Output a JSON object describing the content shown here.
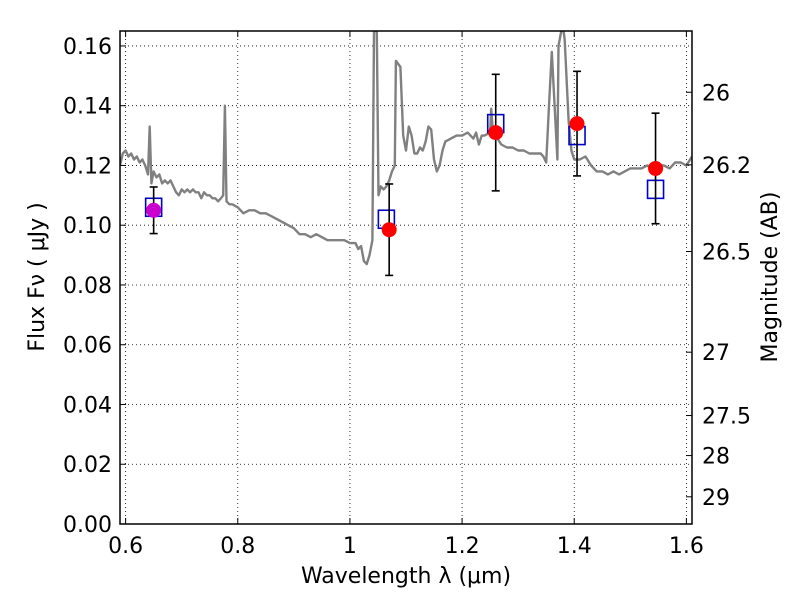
{
  "chart_data": {
    "type": "scatter",
    "xlabel": "Wavelength  λ (μm)",
    "ylabel": "Flux  Fν  ( μJy )",
    "ylabel_right": "Magnitude (AB)",
    "xlim": [
      0.59,
      1.61
    ],
    "ylim": [
      0.0,
      0.165
    ],
    "grid": true,
    "x_ticks": [
      0.6,
      0.8,
      1.0,
      1.2,
      1.4,
      1.6
    ],
    "x_tick_labels": [
      "0.6",
      "0.8",
      "1",
      "1.2",
      "1.4",
      "1.6"
    ],
    "y_ticks": [
      0.0,
      0.02,
      0.04,
      0.06,
      0.08,
      0.1,
      0.12,
      0.14,
      0.16
    ],
    "y_tick_labels": [
      "0.00",
      "0.02",
      "0.04",
      "0.06",
      "0.08",
      "0.10",
      "0.12",
      "0.14",
      "0.16"
    ],
    "right_ticks": [
      {
        "label": "26",
        "flux": 0.1445
      },
      {
        "label": "26.2",
        "flux": 0.1202
      },
      {
        "label": "26.5",
        "flux": 0.0912
      },
      {
        "label": "27",
        "flux": 0.0575
      },
      {
        "label": "27.5",
        "flux": 0.0363
      },
      {
        "label": "28",
        "flux": 0.0229
      },
      {
        "label": "29",
        "flux": 0.0091
      }
    ],
    "series": [
      {
        "kind": "model",
        "color": "#808080",
        "points": [
          [
            0.59,
            0.12
          ],
          [
            0.595,
            0.124
          ],
          [
            0.6,
            0.125
          ],
          [
            0.605,
            0.123
          ],
          [
            0.61,
            0.124
          ],
          [
            0.615,
            0.122
          ],
          [
            0.62,
            0.123
          ],
          [
            0.625,
            0.121
          ],
          [
            0.63,
            0.122
          ],
          [
            0.635,
            0.12
          ],
          [
            0.64,
            0.117
          ],
          [
            0.643,
            0.133
          ],
          [
            0.646,
            0.114
          ],
          [
            0.65,
            0.118
          ],
          [
            0.655,
            0.116
          ],
          [
            0.66,
            0.117
          ],
          [
            0.665,
            0.114
          ],
          [
            0.67,
            0.115
          ],
          [
            0.675,
            0.114
          ],
          [
            0.68,
            0.115
          ],
          [
            0.685,
            0.113
          ],
          [
            0.69,
            0.111
          ],
          [
            0.695,
            0.11
          ],
          [
            0.7,
            0.112
          ],
          [
            0.705,
            0.111
          ],
          [
            0.71,
            0.112
          ],
          [
            0.715,
            0.111
          ],
          [
            0.72,
            0.112
          ],
          [
            0.725,
            0.111
          ],
          [
            0.73,
            0.111
          ],
          [
            0.735,
            0.109
          ],
          [
            0.74,
            0.111
          ],
          [
            0.745,
            0.11
          ],
          [
            0.75,
            0.11
          ],
          [
            0.755,
            0.109
          ],
          [
            0.76,
            0.109
          ],
          [
            0.765,
            0.108
          ],
          [
            0.77,
            0.109
          ],
          [
            0.774,
            0.11
          ],
          [
            0.777,
            0.14
          ],
          [
            0.78,
            0.108
          ],
          [
            0.785,
            0.107
          ],
          [
            0.79,
            0.107
          ],
          [
            0.8,
            0.106
          ],
          [
            0.81,
            0.104
          ],
          [
            0.82,
            0.105
          ],
          [
            0.83,
            0.105
          ],
          [
            0.84,
            0.104
          ],
          [
            0.85,
            0.104
          ],
          [
            0.86,
            0.103
          ],
          [
            0.87,
            0.102
          ],
          [
            0.88,
            0.101
          ],
          [
            0.89,
            0.1
          ],
          [
            0.9,
            0.099
          ],
          [
            0.91,
            0.097
          ],
          [
            0.92,
            0.097
          ],
          [
            0.93,
            0.096
          ],
          [
            0.94,
            0.097
          ],
          [
            0.95,
            0.096
          ],
          [
            0.96,
            0.095
          ],
          [
            0.97,
            0.095
          ],
          [
            0.98,
            0.095
          ],
          [
            0.99,
            0.095
          ],
          [
            1.0,
            0.094
          ],
          [
            1.01,
            0.094
          ],
          [
            1.015,
            0.092
          ],
          [
            1.02,
            0.093
          ],
          [
            1.025,
            0.088
          ],
          [
            1.03,
            0.087
          ],
          [
            1.035,
            0.09
          ],
          [
            1.04,
            0.095
          ],
          [
            1.043,
            0.165
          ],
          [
            1.048,
            0.165
          ],
          [
            1.051,
            0.11
          ],
          [
            1.055,
            0.113
          ],
          [
            1.06,
            0.112
          ],
          [
            1.065,
            0.113
          ],
          [
            1.07,
            0.115
          ],
          [
            1.075,
            0.118
          ],
          [
            1.08,
            0.12
          ],
          [
            1.082,
            0.155
          ],
          [
            1.09,
            0.153
          ],
          [
            1.095,
            0.13
          ],
          [
            1.1,
            0.125
          ],
          [
            1.105,
            0.133
          ],
          [
            1.11,
            0.13
          ],
          [
            1.115,
            0.124
          ],
          [
            1.12,
            0.124
          ],
          [
            1.125,
            0.126
          ],
          [
            1.13,
            0.125
          ],
          [
            1.135,
            0.128
          ],
          [
            1.14,
            0.133
          ],
          [
            1.145,
            0.132
          ],
          [
            1.15,
            0.122
          ],
          [
            1.155,
            0.118
          ],
          [
            1.16,
            0.12
          ],
          [
            1.165,
            0.125
          ],
          [
            1.17,
            0.128
          ],
          [
            1.18,
            0.129
          ],
          [
            1.19,
            0.13
          ],
          [
            1.2,
            0.13
          ],
          [
            1.21,
            0.131
          ],
          [
            1.22,
            0.129
          ],
          [
            1.225,
            0.131
          ],
          [
            1.23,
            0.127
          ],
          [
            1.235,
            0.13
          ],
          [
            1.24,
            0.13
          ],
          [
            1.25,
            0.131
          ],
          [
            1.252,
            0.139
          ],
          [
            1.255,
            0.131
          ],
          [
            1.26,
            0.13
          ],
          [
            1.27,
            0.127
          ],
          [
            1.28,
            0.126
          ],
          [
            1.29,
            0.126
          ],
          [
            1.3,
            0.125
          ],
          [
            1.31,
            0.125
          ],
          [
            1.32,
            0.124
          ],
          [
            1.33,
            0.124
          ],
          [
            1.34,
            0.124
          ],
          [
            1.345,
            0.123
          ],
          [
            1.35,
            0.121
          ],
          [
            1.355,
            0.14
          ],
          [
            1.36,
            0.158
          ],
          [
            1.365,
            0.14
          ],
          [
            1.37,
            0.122
          ],
          [
            1.372,
            0.16
          ],
          [
            1.377,
            0.165
          ],
          [
            1.381,
            0.165
          ],
          [
            1.383,
            0.162
          ],
          [
            1.39,
            0.135
          ],
          [
            1.395,
            0.125
          ],
          [
            1.4,
            0.122
          ],
          [
            1.41,
            0.122
          ],
          [
            1.42,
            0.123
          ],
          [
            1.43,
            0.12
          ],
          [
            1.44,
            0.118
          ],
          [
            1.45,
            0.118
          ],
          [
            1.46,
            0.117
          ],
          [
            1.47,
            0.118
          ],
          [
            1.48,
            0.117
          ],
          [
            1.49,
            0.118
          ],
          [
            1.5,
            0.119
          ],
          [
            1.51,
            0.119
          ],
          [
            1.52,
            0.119
          ],
          [
            1.53,
            0.12
          ],
          [
            1.54,
            0.119
          ],
          [
            1.55,
            0.12
          ],
          [
            1.56,
            0.12
          ],
          [
            1.57,
            0.119
          ],
          [
            1.58,
            0.121
          ],
          [
            1.59,
            0.121
          ],
          [
            1.6,
            0.12
          ],
          [
            1.61,
            0.123
          ]
        ]
      },
      {
        "kind": "model_photometry",
        "color": "#0000cc",
        "points": [
          [
            0.65,
            0.106
          ],
          [
            1.065,
            0.102
          ],
          [
            1.26,
            0.134
          ],
          [
            1.405,
            0.13
          ],
          [
            1.545,
            0.112
          ]
        ]
      },
      {
        "kind": "observed",
        "color": "#ff0000",
        "points": [
          {
            "x": 0.65,
            "y": 0.105,
            "err": 0.0078,
            "color": "#cc00cc"
          },
          {
            "x": 1.07,
            "y": 0.0985,
            "err": 0.0153
          },
          {
            "x": 1.26,
            "y": 0.131,
            "err": 0.0195
          },
          {
            "x": 1.405,
            "y": 0.134,
            "err": 0.0175
          },
          {
            "x": 1.545,
            "y": 0.119,
            "err": 0.0185
          }
        ]
      }
    ]
  }
}
